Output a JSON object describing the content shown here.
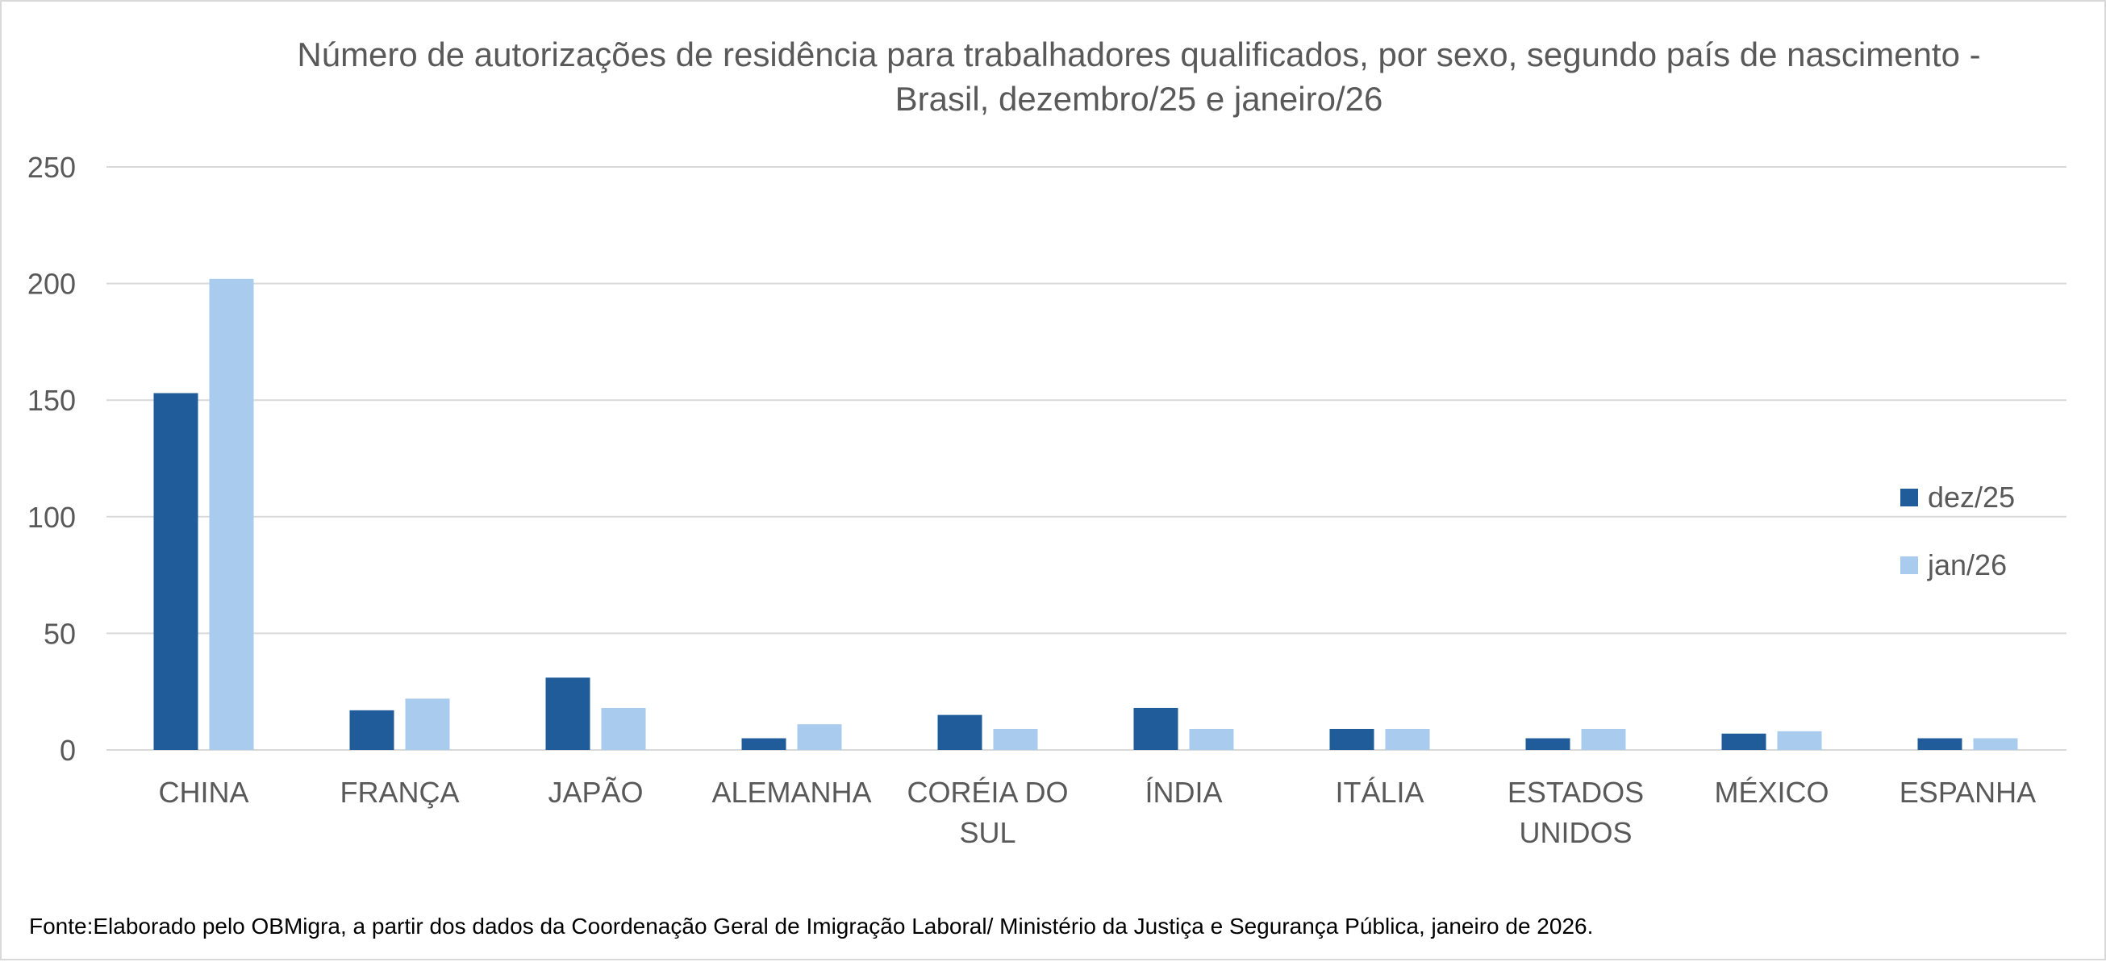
{
  "chart_data": {
    "type": "bar",
    "title": "Número de autorizações de residência para trabalhadores qualificados, por sexo, segundo país de nascimento - Brasil, dezembro/25 e janeiro/26",
    "title_lines": [
      "Número de autorizações de residência para trabalhadores qualificados, por sexo, segundo país de nascimento -",
      "Brasil, dezembro/25 e janeiro/26"
    ],
    "xlabel": "",
    "ylabel": "",
    "ylim": [
      0,
      250
    ],
    "yticks": [
      "0",
      "50",
      "100",
      "150",
      "200",
      "250"
    ],
    "grid": true,
    "legend_position": "right",
    "categories": [
      "CHINA",
      "FRANÇA",
      "JAPÃO",
      "ALEMANHA",
      "CORÉIA DO SUL",
      "ÍNDIA",
      "ITÁLIA",
      "ESTADOS UNIDOS",
      "MÉXICO",
      "ESPANHA"
    ],
    "category_lines": [
      [
        "CHINA"
      ],
      [
        "FRANÇA"
      ],
      [
        "JAPÃO"
      ],
      [
        "ALEMANHA"
      ],
      [
        "CORÉIA DO",
        "SUL"
      ],
      [
        "ÍNDIA"
      ],
      [
        "ITÁLIA"
      ],
      [
        "ESTADOS",
        "UNIDOS"
      ],
      [
        "MÉXICO"
      ],
      [
        "ESPANHA"
      ]
    ],
    "series": [
      {
        "name": "dez/25",
        "color": "#1f5c99",
        "values": [
          153,
          17,
          31,
          5,
          15,
          18,
          9,
          5,
          7,
          5
        ]
      },
      {
        "name": "jan/26",
        "color": "#a9cbed",
        "values": [
          202,
          22,
          18,
          11,
          9,
          9,
          9,
          9,
          8,
          5
        ]
      }
    ],
    "source": "Fonte:Elaborado pelo OBMigra, a partir dos dados da Coordenação Geral de Imigração Laboral/ Ministério da Justiça e Segurança Pública, janeiro de 2026."
  }
}
